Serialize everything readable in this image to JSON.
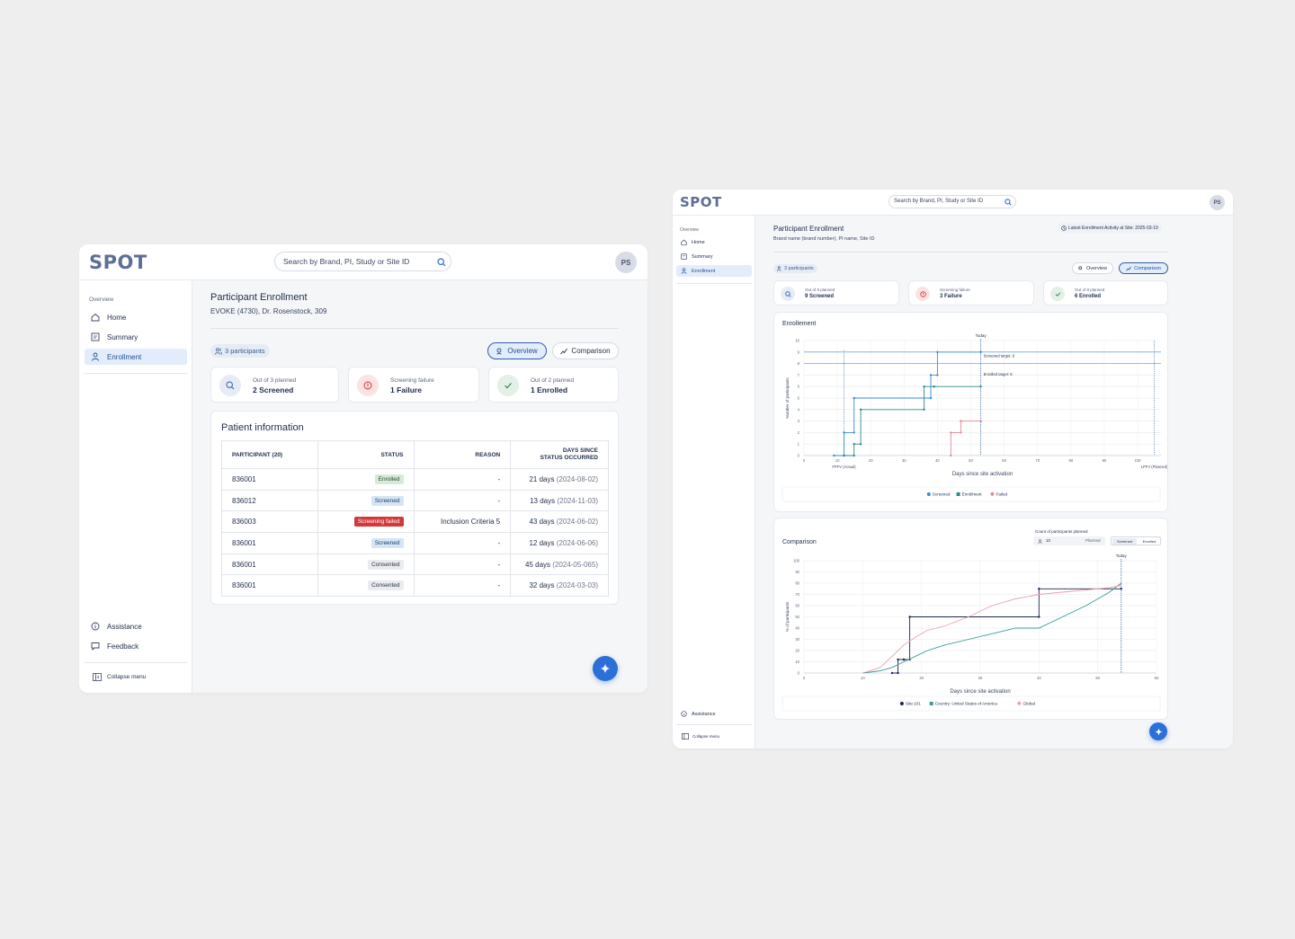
{
  "common": {
    "logo": "SPOT",
    "search_placeholder": "Search by Brand, PI, Study or Site ID",
    "avatar_initials": "PS",
    "nav": {
      "section": "Overview",
      "home": "Home",
      "summary": "Summary",
      "enrollment": "Enrollment",
      "assistance": "Assistance",
      "feedback": "Feedback",
      "collapse": "Collapse menu"
    },
    "page_title": "Participant  Enrollment",
    "tab_overview": "Overview",
    "tab_comparison": "Comparison"
  },
  "left": {
    "subtitle": "EVOKE (4730), Dr. Rosenstock, 309",
    "participants_badge": "3 participants",
    "kpis": [
      {
        "sub": "Out of 3 planned",
        "value": "2 Screened",
        "icon": "search-icon",
        "color": "#e6ecf6"
      },
      {
        "sub": "Screening failure",
        "value": "1 Failure",
        "icon": "alert-circle-icon",
        "color": "#fbe3e3"
      },
      {
        "sub": "Out of 2 planned",
        "value": "1 Enrolled",
        "icon": "check-icon",
        "color": "#e3f0e5"
      }
    ],
    "patient_info_title": "Patient information",
    "table": {
      "headers": [
        "PARTICIPANT (20)",
        "STATUS",
        "REASON",
        "DAYS SINCE",
        "STATUS OCCURRED"
      ],
      "rows": [
        {
          "id": "836001",
          "status": "Enrolled",
          "status_type": "enrolled",
          "reason": "-",
          "days": "21 days",
          "date": "(2024-08-02)"
        },
        {
          "id": "836012",
          "status": "Screened",
          "status_type": "screened",
          "reason": "-",
          "days": "13 days",
          "date": "(2024-11-03)"
        },
        {
          "id": "836003",
          "status": "Screening failed",
          "status_type": "failed",
          "reason": "Inclusion Criteria 5",
          "days": "43 days",
          "date": "(2024-06-02)"
        },
        {
          "id": "836001",
          "status": "Screened",
          "status_type": "screened",
          "reason": "-",
          "days": "12 days",
          "date": "(2024-06-06)"
        },
        {
          "id": "836001",
          "status": "Consented",
          "status_type": "consented",
          "reason": "-",
          "days": "45 days",
          "date": "(2024-05-065)"
        },
        {
          "id": "836001",
          "status": "Consented",
          "status_type": "consented",
          "reason": "-",
          "days": "32 days",
          "date": "(2024-03-03)"
        }
      ]
    }
  },
  "right": {
    "subtitle": "Brand name (brand number), PI name, Site ID",
    "latest_activity": "Latest Enrollment Activity at Site: 2025-03-19",
    "participants_badge": "3 participants",
    "kpis": [
      {
        "sub": "Out of 9 planned",
        "value": "9 Screened",
        "icon": "search-icon",
        "color": "#e6ecf6"
      },
      {
        "sub": "Screening failure",
        "value": "3 Failure",
        "icon": "alert-circle-icon",
        "color": "#fbe3e3"
      },
      {
        "sub": "Out of 8 planned",
        "value": "6 Enrolled",
        "icon": "check-icon",
        "color": "#e3f0e5"
      }
    ],
    "enrollment_title": "Enrollement",
    "comparison_title": "Comparison",
    "count_planned_label": "Count of participants planned",
    "count_planned_value": "10",
    "count_planned_unit": "Planned",
    "toggle_screened": "Screened",
    "toggle_enrolled": "Enrolled"
  },
  "chart_data": [
    {
      "type": "line",
      "title": "Enrollement",
      "xlabel": "Days since site activation",
      "ylabel": "Number of participants",
      "xlim": [
        0,
        107
      ],
      "ylim": [
        0,
        10
      ],
      "x_ticks": [
        0,
        10,
        20,
        30,
        40,
        50,
        60,
        70,
        80,
        90,
        100
      ],
      "y_ticks": [
        0,
        1,
        2,
        3,
        4,
        5,
        6,
        7,
        8,
        9,
        10
      ],
      "grid": true,
      "legend": "bottom",
      "annotations": {
        "today_label": "Today",
        "today_x": 53,
        "fpfv_label": "FPFV (Actual)",
        "fpfv_x": 12,
        "lpfv_label": "LPFV (Planned)",
        "lpfv_x": 105,
        "screened_target_label": "Screened target: 9",
        "screened_target_y": 9,
        "enrolled_target_label": "Enrolled target: 8",
        "enrolled_target_y": 8
      },
      "series": [
        {
          "name": "Screened",
          "color": "#3a8ad6",
          "x": [
            9,
            12,
            12,
            15,
            15,
            38,
            38,
            40,
            40,
            53
          ],
          "y": [
            0,
            0,
            2,
            2,
            5,
            5,
            7,
            7,
            9,
            9
          ]
        },
        {
          "name": "Enrollment",
          "color": "#2a8a8a",
          "x": [
            12,
            15,
            15,
            17,
            17,
            36,
            36,
            39,
            39,
            53
          ],
          "y": [
            0,
            0,
            1,
            1,
            4,
            4,
            6,
            6,
            6,
            6
          ]
        },
        {
          "name": "Failed",
          "color": "#e08a95",
          "x": [
            44,
            44,
            47,
            47,
            53
          ],
          "y": [
            0,
            2,
            2,
            3,
            3
          ]
        }
      ]
    },
    {
      "type": "line",
      "title": "Comparison",
      "xlabel": "Days since site activation",
      "ylabel": "% of participants",
      "xlim": [
        0,
        60
      ],
      "ylim": [
        0,
        100
      ],
      "x_ticks": [
        0,
        10,
        20,
        30,
        40,
        50,
        60
      ],
      "y_ticks": [
        0,
        10,
        20,
        30,
        40,
        50,
        60,
        70,
        80,
        90,
        100
      ],
      "grid": true,
      "legend": "bottom",
      "annotations": {
        "today_label": "Today",
        "today_x": 54
      },
      "series": [
        {
          "name": "Site:101",
          "color": "#1a2555",
          "x": [
            15,
            16,
            16,
            17,
            17,
            18,
            18,
            40,
            40,
            54
          ],
          "y": [
            0,
            0,
            12,
            12,
            12,
            12,
            50,
            50,
            75,
            75
          ]
        },
        {
          "name": "Country: United States of America",
          "color": "#3a9a9a",
          "x": [
            10,
            13,
            15,
            17,
            19,
            21,
            24,
            28,
            32,
            36,
            40,
            44,
            48,
            52,
            54
          ],
          "y": [
            0,
            2,
            5,
            10,
            15,
            20,
            25,
            30,
            35,
            40,
            40,
            50,
            60,
            72,
            80
          ]
        },
        {
          "name": "Global",
          "color": "#e8a0ad",
          "x": [
            10,
            13,
            15,
            17,
            19,
            21,
            24,
            28,
            32,
            36,
            40,
            44,
            48,
            52,
            54
          ],
          "y": [
            0,
            5,
            15,
            25,
            32,
            38,
            42,
            50,
            60,
            66,
            70,
            72,
            74,
            76,
            78
          ]
        }
      ]
    }
  ]
}
